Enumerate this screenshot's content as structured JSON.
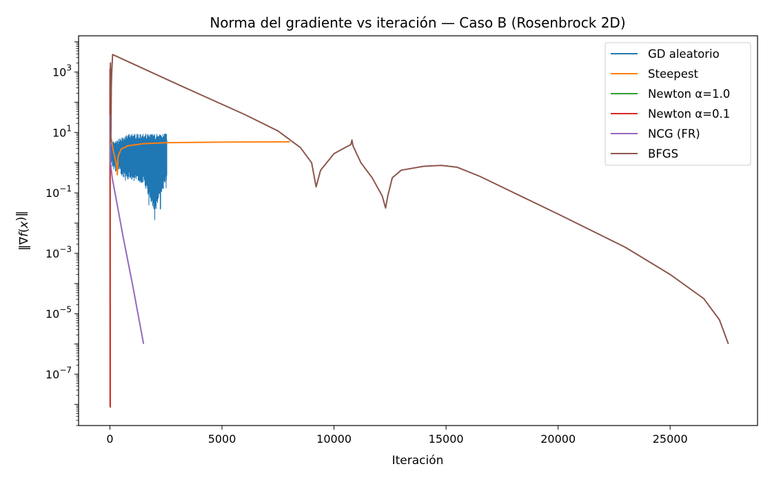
{
  "chart_data": {
    "type": "line",
    "title": "Norma del gradiente vs iteración — Caso B (Rosenbrock 2D)",
    "xlabel": "Iteración",
    "ylabel": "‖∇f(x_k)‖",
    "yscale": "log",
    "xlim": [
      -1400,
      28900
    ],
    "ylim_exp": [
      -8.7,
      4.2
    ],
    "x_ticks": [
      0,
      5000,
      10000,
      15000,
      20000,
      25000
    ],
    "x_tick_labels": [
      "0",
      "5000",
      "10000",
      "15000",
      "20000",
      "25000"
    ],
    "y_tick_exponents": [
      3,
      1,
      -1,
      -3,
      -5,
      -7
    ],
    "y_tick_labels": [
      {
        "base": "10",
        "exp": "3"
      },
      {
        "base": "10",
        "exp": "1"
      },
      {
        "base": "10",
        "exp": "−1"
      },
      {
        "base": "10",
        "exp": "−3"
      },
      {
        "base": "10",
        "exp": "−5"
      },
      {
        "base": "10",
        "exp": "−7"
      }
    ],
    "legend_position": "top-right",
    "grid": false,
    "series": [
      {
        "name": "GD aleatorio",
        "color": "#1f77b4",
        "noisy": true,
        "x_range": [
          0,
          2530
        ],
        "upper_log10": [
          [
            0,
            1.3
          ],
          [
            20,
            0.85
          ],
          [
            200,
            0.7
          ],
          [
            800,
            0.95
          ],
          [
            2530,
            0.95
          ]
        ],
        "lower_log10": [
          [
            0,
            0.0
          ],
          [
            200,
            -0.3
          ],
          [
            800,
            -0.55
          ],
          [
            1500,
            -0.7
          ],
          [
            2000,
            -1.6
          ],
          [
            2530,
            -0.6
          ]
        ]
      },
      {
        "name": "Steepest",
        "color": "#ff7f0e",
        "points_log10": [
          [
            0,
            1.0
          ],
          [
            150,
            0.4
          ],
          [
            300,
            -0.1
          ],
          [
            330,
            -0.4
          ],
          [
            360,
            0.2
          ],
          [
            500,
            0.45
          ],
          [
            800,
            0.56
          ],
          [
            1500,
            0.63
          ],
          [
            2500,
            0.66
          ],
          [
            5000,
            0.68
          ],
          [
            8030,
            0.69
          ]
        ]
      },
      {
        "name": "Newton α=1.0",
        "color": "#2ca02c",
        "points_log10": [
          [
            0,
            1.0
          ],
          [
            5,
            -0.5
          ],
          [
            10,
            -8.0
          ],
          [
            12,
            -8.1
          ]
        ]
      },
      {
        "name": "Newton α=0.1",
        "color": "#d62728",
        "points_log10": [
          [
            0,
            1.0
          ],
          [
            3,
            3.1
          ],
          [
            6,
            -0.3
          ],
          [
            10,
            -4.0
          ],
          [
            13,
            -8.0
          ],
          [
            15,
            -8.1
          ]
        ]
      },
      {
        "name": "NCG (FR)",
        "color": "#9467bd",
        "points_log10": [
          [
            0,
            1.6
          ],
          [
            20,
            0.0
          ],
          [
            100,
            -0.5
          ],
          [
            300,
            -1.3
          ],
          [
            600,
            -2.5
          ],
          [
            1000,
            -4.0
          ],
          [
            1500,
            -6.0
          ]
        ]
      },
      {
        "name": "BFGS",
        "color": "#8c564b",
        "points_log10": [
          [
            0,
            2.3
          ],
          [
            10,
            2.4
          ],
          [
            20,
            3.3
          ],
          [
            40,
            0.7
          ],
          [
            60,
            2.5
          ],
          [
            80,
            3.0
          ],
          [
            120,
            3.58
          ],
          [
            3000,
            2.6
          ],
          [
            6000,
            1.6
          ],
          [
            7500,
            1.05
          ],
          [
            8500,
            0.5
          ],
          [
            9000,
            0.0
          ],
          [
            9200,
            -0.8
          ],
          [
            9400,
            -0.25
          ],
          [
            10000,
            0.3
          ],
          [
            10500,
            0.5
          ],
          [
            10750,
            0.6
          ],
          [
            10800,
            0.75
          ],
          [
            10850,
            0.55
          ],
          [
            11200,
            0.0
          ],
          [
            11700,
            -0.5
          ],
          [
            12150,
            -1.1
          ],
          [
            12300,
            -1.5
          ],
          [
            12400,
            -1.1
          ],
          [
            12600,
            -0.5
          ],
          [
            13000,
            -0.25
          ],
          [
            14000,
            -0.12
          ],
          [
            14800,
            -0.09
          ],
          [
            15500,
            -0.15
          ],
          [
            16500,
            -0.45
          ],
          [
            20000,
            -1.7
          ],
          [
            23000,
            -2.8
          ],
          [
            25000,
            -3.7
          ],
          [
            26500,
            -4.5
          ],
          [
            27200,
            -5.2
          ],
          [
            27600,
            -6.0
          ]
        ]
      }
    ]
  }
}
